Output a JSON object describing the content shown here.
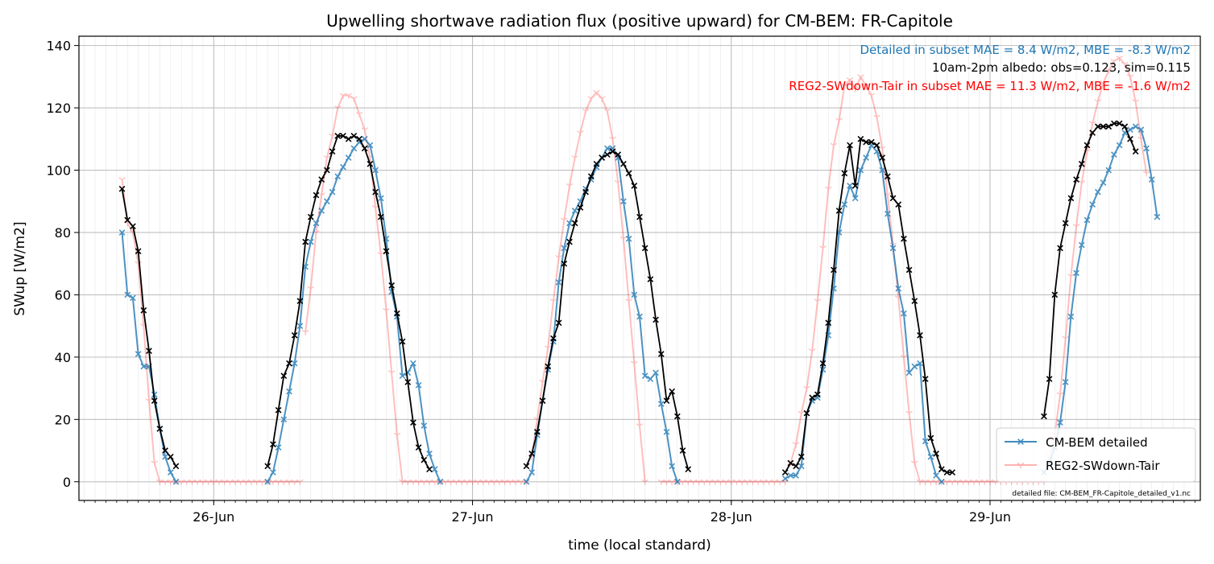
{
  "chart_data": {
    "type": "line",
    "title": "Upwelling shortwave radiation flux (positive upward) for CM-BEM: FR-Capitole",
    "xlabel": "time (local standard)",
    "ylabel": "SWup [W/m2]",
    "x_unit": "hours",
    "xlim": [
      -12.5,
      91.5
    ],
    "ylim": [
      -6,
      143
    ],
    "yticks": [
      0,
      20,
      40,
      60,
      80,
      100,
      120,
      140
    ],
    "xticks": [
      {
        "value": 0,
        "label": "26-Jun"
      },
      {
        "value": 24,
        "label": "27-Jun"
      },
      {
        "value": 48,
        "label": "28-Jun"
      },
      {
        "value": 72,
        "label": "29-Jun"
      }
    ],
    "grid": true,
    "legend_position": "lower-right",
    "annotations": [
      {
        "text": "Detailed in subset MAE = 8.4 W/m2, MBE = -8.3 W/m2",
        "color": "#1f77b4"
      },
      {
        "text": "10am-2pm albedo: obs=0.123, sim=0.115",
        "color": "#000000"
      },
      {
        "text": "REG2-SWdown-Tair in subset MAE = 11.3 W/m2, MBE = -1.6 W/m2",
        "color": "#ff0000"
      }
    ],
    "footnote": "detailed file: CM-BEM_FR-Capitole_detailed_v1.nc",
    "series": [
      {
        "name": "CM-BEM detailed",
        "color": "#1f77b4",
        "marker": "x",
        "segments": [
          {
            "x0": -8.5,
            "dt": 0.5,
            "values": [
              80,
              60,
              59,
              41,
              37,
              37,
              28,
              17,
              8,
              3,
              0
            ]
          },
          {
            "x0": 5.0,
            "dt": 0.5,
            "values": [
              0,
              3,
              11,
              20,
              29,
              38,
              50,
              69,
              77,
              83,
              87,
              90,
              93,
              98,
              101,
              104,
              107,
              109,
              110,
              108,
              100,
              91,
              78,
              61,
              53,
              34,
              35,
              38,
              31,
              18,
              9,
              4,
              0
            ]
          },
          {
            "x0": 29.0,
            "dt": 0.5,
            "values": [
              0,
              3,
              15,
              26,
              36,
              45,
              64,
              75,
              83,
              87,
              90,
              94,
              97,
              101,
              104,
              107,
              107,
              104,
              90,
              78,
              60,
              53,
              34,
              33,
              35,
              25,
              16,
              5,
              0
            ]
          },
          {
            "x0": 53.0,
            "dt": 0.5,
            "values": [
              1,
              2,
              2,
              5,
              22,
              26,
              27,
              36,
              47,
              62,
              80,
              89,
              95,
              91,
              100,
              104,
              108,
              106,
              100,
              86,
              75,
              62,
              54,
              35,
              37,
              38,
              13,
              8,
              2,
              0
            ]
          },
          {
            "x0": 77.0,
            "dt": 0.5,
            "values": [
              3,
              6,
              11,
              19,
              32,
              53,
              67,
              76,
              84,
              89,
              93,
              96,
              100,
              105,
              108,
              112,
              113,
              114,
              113,
              107,
              97,
              85
            ]
          }
        ]
      },
      {
        "name": "REG2-SWdown-Tair",
        "color": "#ff0000",
        "marker": "tri",
        "opacity": 0.25,
        "segments": [
          {
            "x0": -8.5,
            "dt": 0.5,
            "values": [
              97,
              83,
              80,
              70,
              50,
              26,
              6,
              0
            ]
          },
          {
            "x0": -5.0,
            "dt": 0.5,
            "values": [
              0,
              0,
              0,
              0,
              0,
              0,
              0,
              0,
              0,
              0,
              0,
              0,
              0,
              0,
              0,
              0,
              0,
              0,
              0,
              0,
              0,
              0,
              0,
              0,
              0,
              0,
              0
            ]
          },
          {
            "x0": 8.5,
            "dt": 0.5,
            "values": [
              48,
              62,
              80,
              92,
              104,
              111,
              120,
              124,
              124,
              123,
              118,
              113,
              104,
              88,
              73,
              55,
              35,
              15,
              0
            ]
          },
          {
            "x0": 17.5,
            "dt": 0.5,
            "values": [
              0,
              0,
              0,
              0,
              0,
              0,
              0,
              0,
              0,
              0,
              0,
              0,
              0,
              0,
              0,
              0,
              0,
              0,
              0,
              0,
              0,
              0,
              0,
              0
            ]
          },
          {
            "x0": 29.5,
            "dt": 0.5,
            "values": [
              8,
              20,
              32,
              43,
              58,
              72,
              84,
              95,
              104,
              112,
              119,
              123,
              125,
              123,
              119,
              110,
              96,
              78,
              58,
              38,
              18,
              0
            ]
          },
          {
            "x0": 41.5,
            "dt": 0.5,
            "values": [
              0,
              0,
              0,
              0,
              0,
              0,
              0,
              0,
              0,
              0,
              0,
              0,
              0,
              0,
              0,
              0,
              0,
              0,
              0,
              0,
              0,
              0,
              0,
              0
            ]
          },
          {
            "x0": 53.5,
            "dt": 0.5,
            "values": [
              6,
              12,
              22,
              30,
              42,
              58,
              75,
              94,
              108,
              116,
              127,
              129,
              126,
              130,
              127,
              124,
              117,
              107,
              92,
              76,
              59,
              40,
              22,
              6,
              0
            ]
          },
          {
            "x0": 65.5,
            "dt": 0.5,
            "values": [
              0,
              0,
              0,
              0,
              0,
              0,
              0,
              0,
              0,
              0,
              0,
              0,
              0,
              0,
              0,
              0,
              0,
              0,
              0,
              0,
              0,
              0,
              0,
              0
            ]
          },
          {
            "x0": 77.5,
            "dt": 0.5,
            "values": [
              8,
              15,
              28,
              46,
              66,
              82,
              96,
              106,
              115,
              122,
              128,
              132,
              135,
              136,
              134,
              130,
              122,
              110,
              99
            ]
          }
        ]
      },
      {
        "name": "",
        "color": "#000000",
        "marker": "x",
        "segments": [
          {
            "x0": -8.5,
            "dt": 0.5,
            "values": [
              94,
              84,
              82,
              74,
              55,
              42,
              26,
              17,
              10,
              8,
              5
            ]
          },
          {
            "x0": 5.0,
            "dt": 0.5,
            "values": [
              5,
              12,
              23,
              34,
              38,
              47,
              58,
              77,
              85,
              92,
              97,
              100,
              106,
              111,
              111,
              110,
              111,
              110,
              107,
              102,
              93,
              85,
              74,
              63,
              54,
              45,
              32,
              19,
              11,
              7,
              4
            ]
          },
          {
            "x0": 29.0,
            "dt": 0.5,
            "values": [
              5,
              9,
              16,
              26,
              37,
              46,
              51,
              70,
              77,
              83,
              88,
              93,
              98,
              102,
              104,
              105,
              106,
              105,
              102,
              99,
              95,
              85,
              75,
              65,
              52,
              41,
              26,
              29,
              21,
              10,
              4
            ]
          },
          {
            "x0": 53.0,
            "dt": 0.5,
            "values": [
              3,
              6,
              5,
              8,
              22,
              27,
              28,
              38,
              51,
              68,
              87,
              99,
              108,
              95,
              110,
              109,
              109,
              108,
              104,
              98,
              91,
              89,
              78,
              68,
              58,
              47,
              33,
              14,
              9,
              4,
              3,
              3
            ]
          },
          {
            "x0": 77.0,
            "dt": 0.5,
            "values": [
              21,
              33,
              60,
              75,
              83,
              91,
              97,
              102,
              108,
              112,
              114,
              114,
              114,
              115,
              115,
              114,
              110,
              106
            ]
          }
        ]
      }
    ]
  }
}
